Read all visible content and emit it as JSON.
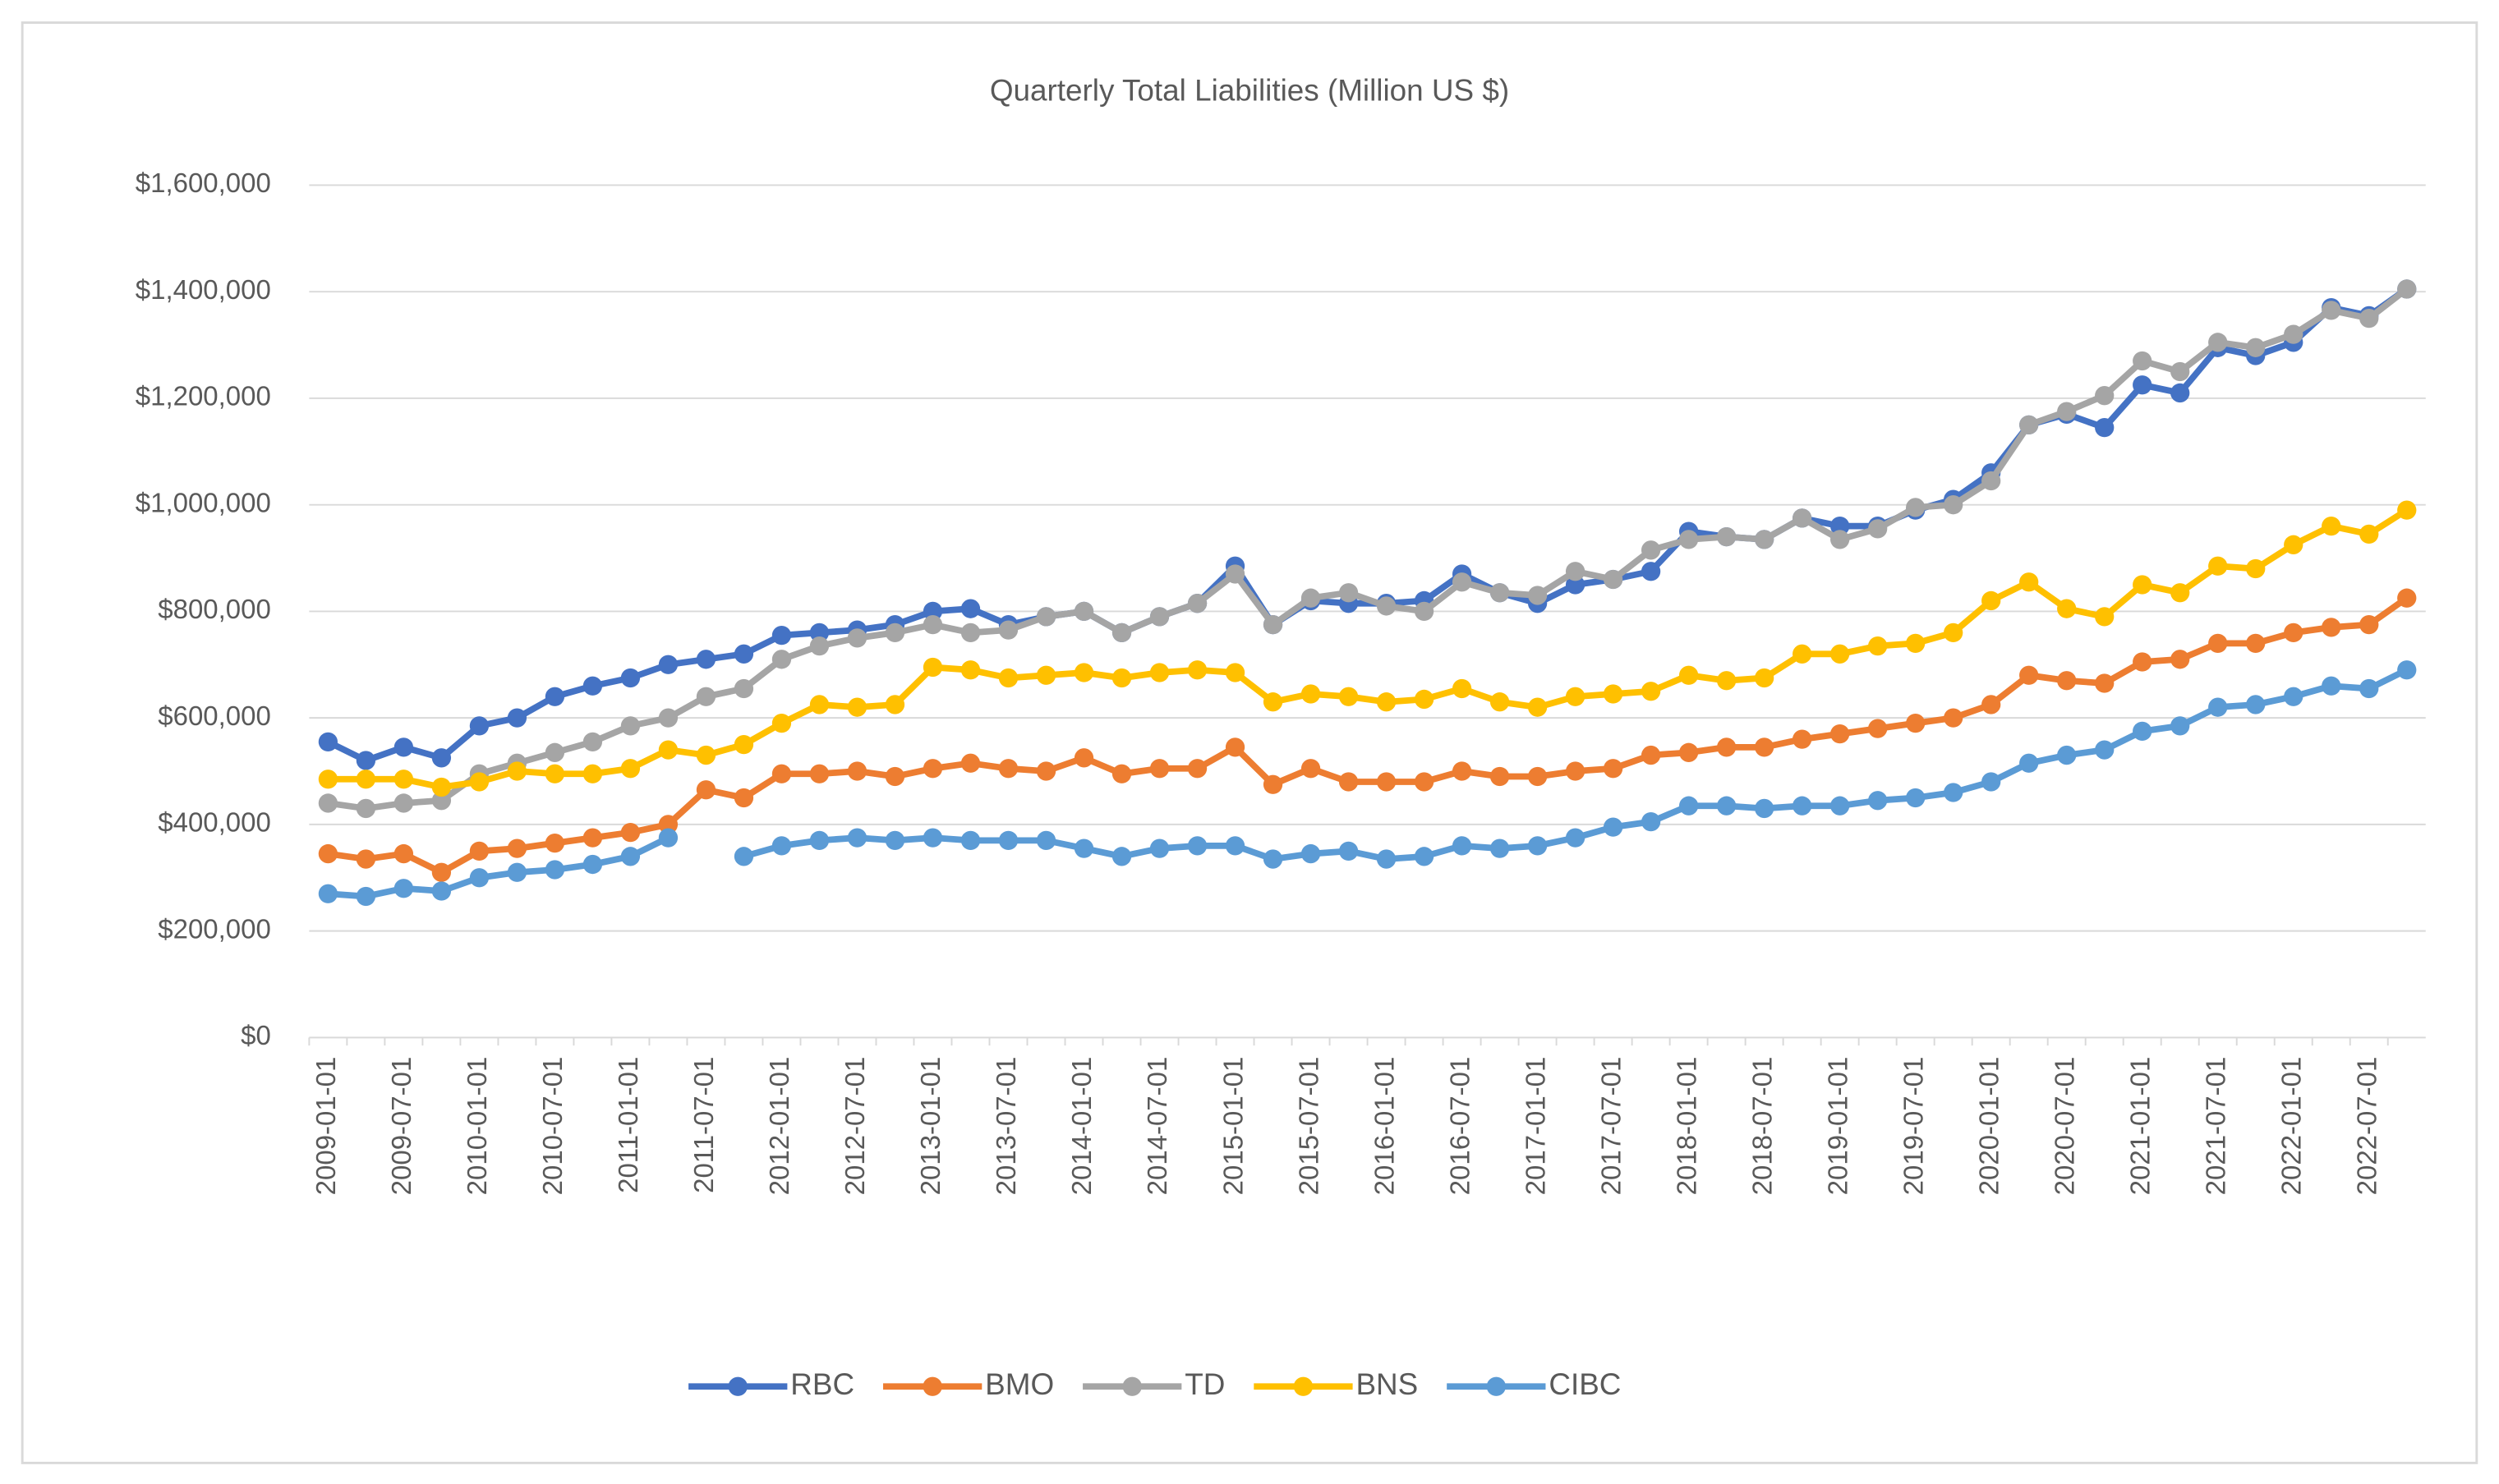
{
  "chart_data": {
    "type": "line",
    "title": "Quarterly Total Liabilities (Million US $)",
    "categories": [
      "2009-01-01",
      null,
      "2009-07-01",
      null,
      "2010-01-01",
      null,
      "2010-07-01",
      null,
      "2011-01-01",
      null,
      "2011-07-01",
      null,
      "2012-01-01",
      null,
      "2012-07-01",
      null,
      "2013-01-01",
      null,
      "2013-07-01",
      null,
      "2014-01-01",
      null,
      "2014-07-01",
      null,
      "2015-01-01",
      null,
      "2015-07-01",
      null,
      "2016-01-01",
      null,
      "2016-07-01",
      null,
      "2017-01-01",
      null,
      "2017-07-01",
      null,
      "2018-01-01",
      null,
      "2018-07-01",
      null,
      "2019-01-01",
      null,
      "2019-07-01",
      null,
      "2020-01-01",
      null,
      "2020-07-01",
      null,
      "2021-01-01",
      null,
      "2021-07-01",
      null,
      "2022-01-01",
      null,
      "2022-07-01",
      null
    ],
    "series": [
      {
        "name": "RBC",
        "color": "#4472c4",
        "values": [
          555000,
          520000,
          545000,
          525000,
          585000,
          600000,
          640000,
          660000,
          675000,
          700000,
          710000,
          720000,
          755000,
          760000,
          765000,
          775000,
          800000,
          805000,
          775000,
          790000,
          800000,
          760000,
          790000,
          815000,
          885000,
          775000,
          820000,
          815000,
          815000,
          820000,
          870000,
          835000,
          815000,
          850000,
          860000,
          875000,
          950000,
          940000,
          935000,
          975000,
          960000,
          960000,
          990000,
          1010000,
          1060000,
          1150000,
          1170000,
          1145000,
          1225000,
          1210000,
          1295000,
          1280000,
          1305000,
          1370000,
          1355000,
          1405000
        ]
      },
      {
        "name": "BMO",
        "color": "#ed7d31",
        "values": [
          345000,
          335000,
          345000,
          310000,
          350000,
          355000,
          365000,
          375000,
          385000,
          400000,
          465000,
          450000,
          495000,
          495000,
          500000,
          490000,
          505000,
          515000,
          505000,
          500000,
          525000,
          495000,
          505000,
          505000,
          545000,
          475000,
          505000,
          480000,
          480000,
          480000,
          500000,
          490000,
          490000,
          500000,
          505000,
          530000,
          535000,
          545000,
          545000,
          560000,
          570000,
          580000,
          590000,
          600000,
          625000,
          680000,
          670000,
          665000,
          705000,
          710000,
          740000,
          740000,
          760000,
          770000,
          775000,
          825000
        ]
      },
      {
        "name": "TD",
        "color": "#a5a5a5",
        "values": [
          440000,
          430000,
          440000,
          445000,
          495000,
          515000,
          535000,
          555000,
          585000,
          600000,
          640000,
          655000,
          710000,
          735000,
          750000,
          760000,
          775000,
          760000,
          765000,
          790000,
          800000,
          760000,
          790000,
          815000,
          870000,
          775000,
          825000,
          835000,
          810000,
          800000,
          855000,
          835000,
          830000,
          875000,
          860000,
          915000,
          935000,
          940000,
          935000,
          975000,
          935000,
          955000,
          995000,
          1000000,
          1045000,
          1150000,
          1175000,
          1205000,
          1270000,
          1250000,
          1305000,
          1295000,
          1320000,
          1365000,
          1350000,
          1405000
        ]
      },
      {
        "name": "BNS",
        "color": "#ffc000",
        "values": [
          485000,
          485000,
          485000,
          470000,
          480000,
          500000,
          495000,
          495000,
          505000,
          540000,
          530000,
          550000,
          590000,
          625000,
          620000,
          625000,
          695000,
          690000,
          675000,
          680000,
          685000,
          675000,
          685000,
          690000,
          685000,
          630000,
          645000,
          640000,
          630000,
          635000,
          655000,
          630000,
          620000,
          640000,
          645000,
          650000,
          680000,
          670000,
          675000,
          720000,
          720000,
          735000,
          740000,
          760000,
          820000,
          855000,
          805000,
          790000,
          850000,
          835000,
          885000,
          880000,
          925000,
          960000,
          945000,
          990000
        ]
      },
      {
        "name": "CIBC",
        "color": "#5b9bd5",
        "values": [
          270000,
          265000,
          280000,
          275000,
          300000,
          310000,
          315000,
          325000,
          340000,
          375000,
          null,
          340000,
          360000,
          370000,
          375000,
          370000,
          375000,
          370000,
          370000,
          370000,
          355000,
          340000,
          355000,
          360000,
          360000,
          335000,
          345000,
          350000,
          335000,
          340000,
          360000,
          355000,
          360000,
          375000,
          395000,
          405000,
          435000,
          435000,
          430000,
          435000,
          435000,
          445000,
          450000,
          460000,
          480000,
          515000,
          530000,
          540000,
          575000,
          585000,
          620000,
          625000,
          640000,
          660000,
          655000,
          690000
        ]
      }
    ],
    "ylim": [
      0,
      1600000
    ],
    "yticks": [
      {
        "value": 0,
        "label": "$0"
      },
      {
        "value": 200000,
        "label": "$200,000"
      },
      {
        "value": 400000,
        "label": "$400,000"
      },
      {
        "value": 600000,
        "label": "$600,000"
      },
      {
        "value": 800000,
        "label": "$800,000"
      },
      {
        "value": 1000000,
        "label": "$1,000,000"
      },
      {
        "value": 1200000,
        "label": "$1,200,000"
      },
      {
        "value": 1400000,
        "label": "$1,400,000"
      },
      {
        "value": 1600000,
        "label": "$1,600,000"
      }
    ],
    "grid": true,
    "legend": "bottom"
  }
}
